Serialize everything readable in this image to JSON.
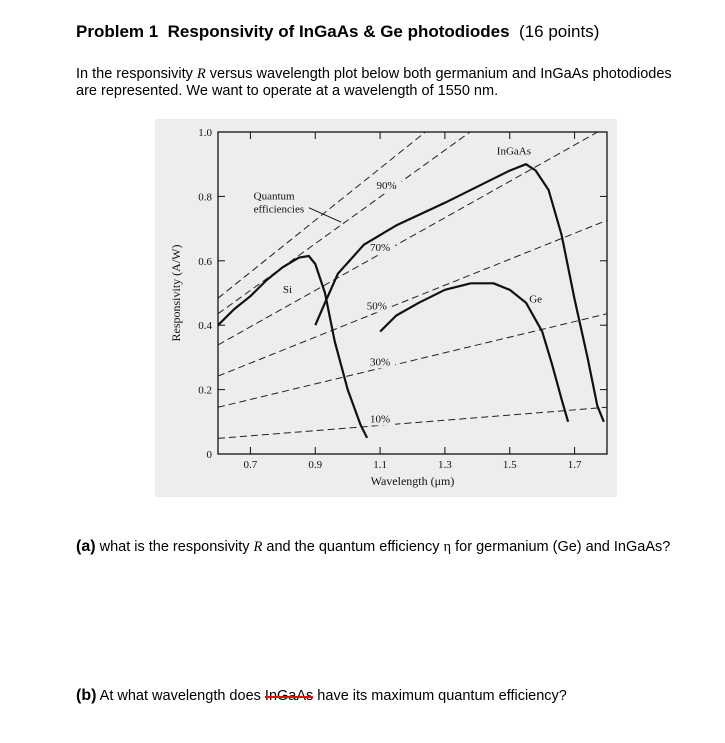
{
  "problem": {
    "number_label": "Problem 1",
    "title": "Responsivity of InGaAs & Ge photodiodes",
    "points": "(16 points)",
    "intro_pre": "In the responsivity ",
    "intro_var": "R",
    "intro_post": " versus wavelength plot below both germanium and InGaAs photodiodes are represented.  We want to operate at a wavelength of 1550 nm."
  },
  "chart_data": {
    "type": "line",
    "xlabel": "Wavelength (μm)",
    "ylabel": "Responsivity (A/W)",
    "xlim": [
      0.6,
      1.8
    ],
    "ylim": [
      0,
      1.0
    ],
    "x_ticks": [
      "0.7",
      "0.9",
      "1.1",
      "1.3",
      "1.5",
      "1.7"
    ],
    "x_tick_values": [
      0.7,
      0.9,
      1.1,
      1.3,
      1.5,
      1.7
    ],
    "y_ticks": [
      "0",
      "0.2",
      "0.4",
      "0.6",
      "0.8",
      "1.0"
    ],
    "y_tick_values": [
      0,
      0.2,
      0.4,
      0.6,
      0.8,
      1.0
    ],
    "annotation": "Quantum efficiencies",
    "efficiency_lines": [
      {
        "label": "10%",
        "eta": 0.1
      },
      {
        "label": "30%",
        "eta": 0.3
      },
      {
        "label": "50%",
        "eta": 0.5
      },
      {
        "label": "70%",
        "eta": 0.7
      },
      {
        "label": "90%",
        "eta": 0.9
      },
      {
        "label": "",
        "eta": 1.0
      }
    ],
    "series": [
      {
        "name": "Si",
        "points": [
          [
            0.6,
            0.4
          ],
          [
            0.65,
            0.45
          ],
          [
            0.7,
            0.49
          ],
          [
            0.75,
            0.54
          ],
          [
            0.8,
            0.58
          ],
          [
            0.85,
            0.61
          ],
          [
            0.88,
            0.615
          ],
          [
            0.9,
            0.59
          ],
          [
            0.93,
            0.5
          ],
          [
            0.96,
            0.35
          ],
          [
            1.0,
            0.2
          ],
          [
            1.04,
            0.09
          ],
          [
            1.06,
            0.05
          ]
        ]
      },
      {
        "name": "InGaAs",
        "points": [
          [
            0.9,
            0.4
          ],
          [
            0.93,
            0.47
          ],
          [
            0.97,
            0.56
          ],
          [
            1.05,
            0.65
          ],
          [
            1.15,
            0.71
          ],
          [
            1.3,
            0.78
          ],
          [
            1.4,
            0.83
          ],
          [
            1.5,
            0.88
          ],
          [
            1.55,
            0.9
          ],
          [
            1.58,
            0.88
          ],
          [
            1.62,
            0.82
          ],
          [
            1.66,
            0.68
          ],
          [
            1.7,
            0.48
          ],
          [
            1.74,
            0.3
          ],
          [
            1.77,
            0.15
          ],
          [
            1.79,
            0.1
          ]
        ]
      },
      {
        "name": "Ge",
        "points": [
          [
            1.1,
            0.38
          ],
          [
            1.15,
            0.43
          ],
          [
            1.22,
            0.47
          ],
          [
            1.3,
            0.51
          ],
          [
            1.38,
            0.53
          ],
          [
            1.45,
            0.53
          ],
          [
            1.5,
            0.51
          ],
          [
            1.55,
            0.47
          ],
          [
            1.6,
            0.38
          ],
          [
            1.63,
            0.28
          ],
          [
            1.66,
            0.17
          ],
          [
            1.68,
            0.1
          ]
        ]
      }
    ]
  },
  "questions": {
    "a_label": "(a)",
    "a_text_1": "  what is the responsivity ",
    "a_var_r": "R",
    "a_text_2": " and the quantum efficiency ",
    "a_var_eta": "η",
    "a_text_3": " for germanium (Ge) and InGaAs?",
    "b_label": "(b)",
    "b_text_1": "  At what wavelength does ",
    "b_struck": "InGaAs",
    "b_text_2": " have its maximum quantum efficiency?"
  }
}
